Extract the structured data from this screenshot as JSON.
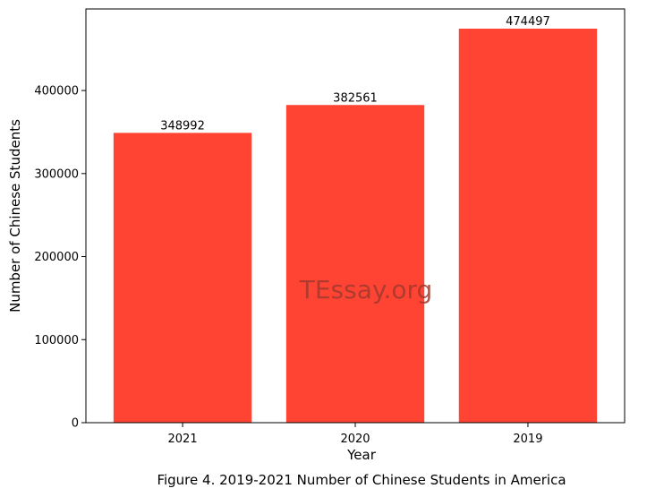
{
  "chart_data": {
    "type": "bar",
    "categories": [
      "2021",
      "2020",
      "2019"
    ],
    "values": [
      348992,
      382561,
      474497
    ],
    "data_labels": [
      "348992",
      "382561",
      "474497"
    ],
    "xlabel": "Year",
    "ylabel": "Number of Chinese Students",
    "ylim": [
      0,
      498222
    ],
    "yticks": [
      0,
      100000,
      200000,
      300000,
      400000
    ],
    "ytick_labels": [
      "0",
      "100000",
      "200000",
      "300000",
      "400000"
    ],
    "grid": false,
    "bar_color": "#ff4433"
  },
  "caption": "Figure 4. 2019-2021 Number of Chinese Students in America",
  "watermark": "TEssay.org"
}
